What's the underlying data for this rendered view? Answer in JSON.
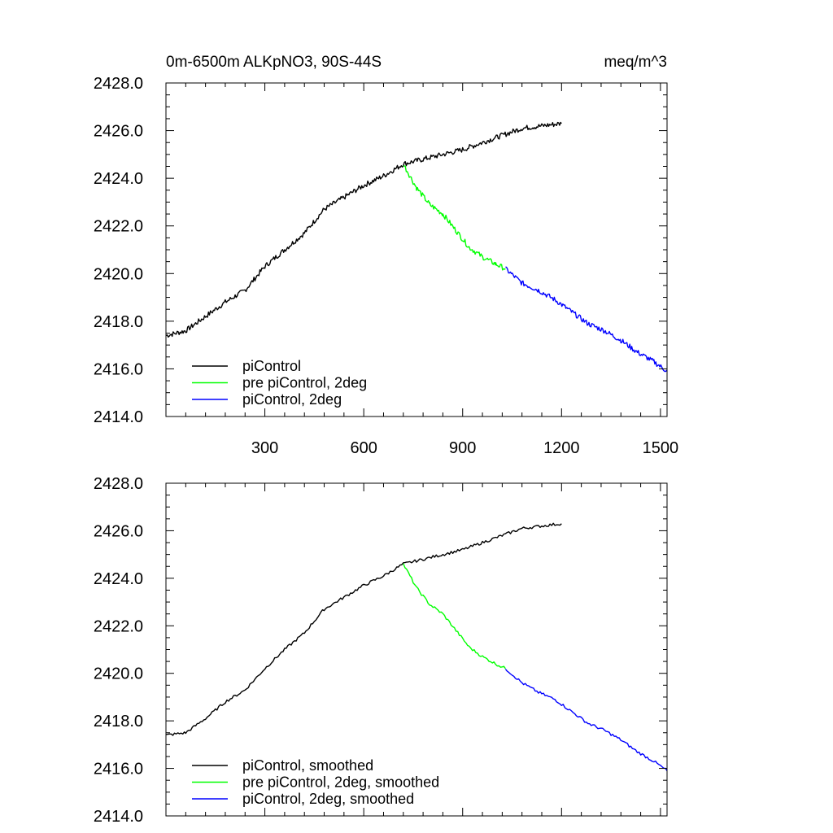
{
  "chart_data": [
    {
      "type": "line",
      "title": "0m-6500m ALKpNO3, 90S-44S",
      "units": "meq/m^3",
      "xlabel": "",
      "ylabel": "",
      "xlim": [
        0,
        1520
      ],
      "ylim": [
        2414.0,
        2428.0
      ],
      "y_ticks": [
        "2414.0",
        "2416.0",
        "2418.0",
        "2420.0",
        "2422.0",
        "2424.0",
        "2426.0",
        "2428.0"
      ],
      "x_ticks": [
        "300",
        "600",
        "900",
        "1200",
        "1500"
      ],
      "grid": false,
      "legend_position": "bottom-left",
      "series": [
        {
          "name": "piControl",
          "color": "#000000",
          "x": [
            1,
            60,
            120,
            180,
            240,
            300,
            360,
            420,
            480,
            540,
            600,
            660,
            720,
            780,
            840,
            900,
            960,
            1020,
            1080,
            1140,
            1200
          ],
          "y": [
            2417.4,
            2417.6,
            2418.2,
            2418.8,
            2419.3,
            2420.3,
            2421.0,
            2421.7,
            2422.7,
            2423.2,
            2423.7,
            2424.1,
            2424.6,
            2424.8,
            2425.0,
            2425.2,
            2425.5,
            2425.8,
            2426.1,
            2426.2,
            2426.3
          ]
        },
        {
          "name": "pre piControl, 2deg",
          "color": "#00ff00",
          "x": [
            720,
            760,
            800,
            840,
            880,
            920,
            960,
            1000,
            1030
          ],
          "y": [
            2424.6,
            2423.6,
            2422.9,
            2422.5,
            2421.8,
            2421.1,
            2420.7,
            2420.4,
            2420.2
          ]
        },
        {
          "name": "piControl, 2deg",
          "color": "#0000ff",
          "x": [
            1030,
            1080,
            1130,
            1180,
            1230,
            1280,
            1330,
            1380,
            1430,
            1480,
            1520
          ],
          "y": [
            2420.2,
            2419.6,
            2419.3,
            2418.9,
            2418.4,
            2417.9,
            2417.6,
            2417.2,
            2416.7,
            2416.3,
            2415.9
          ]
        }
      ]
    },
    {
      "type": "line",
      "title": "",
      "xlabel": "",
      "ylabel": "",
      "xlim": [
        0,
        1520
      ],
      "ylim": [
        2414.0,
        2428.0
      ],
      "y_ticks": [
        "2414.0",
        "2416.0",
        "2418.0",
        "2420.0",
        "2422.0",
        "2424.0",
        "2426.0",
        "2428.0"
      ],
      "x_ticks": [],
      "grid": false,
      "legend_position": "bottom-left",
      "series": [
        {
          "name": "piControl, smoothed",
          "color": "#000000",
          "x": [
            1,
            60,
            120,
            180,
            240,
            300,
            360,
            420,
            480,
            540,
            600,
            660,
            720,
            780,
            840,
            900,
            960,
            1020,
            1080,
            1140,
            1200
          ],
          "y": [
            2417.4,
            2417.5,
            2418.1,
            2418.8,
            2419.3,
            2420.2,
            2421.0,
            2421.7,
            2422.7,
            2423.2,
            2423.7,
            2424.1,
            2424.6,
            2424.8,
            2425.0,
            2425.2,
            2425.5,
            2425.8,
            2426.1,
            2426.2,
            2426.3
          ]
        },
        {
          "name": "pre piControl, 2deg, smoothed",
          "color": "#00ff00",
          "x": [
            720,
            760,
            800,
            840,
            880,
            920,
            960,
            1000,
            1030
          ],
          "y": [
            2424.6,
            2423.6,
            2422.9,
            2422.5,
            2421.8,
            2421.1,
            2420.7,
            2420.4,
            2420.2
          ]
        },
        {
          "name": "piControl, 2deg, smoothed",
          "color": "#0000ff",
          "x": [
            1030,
            1080,
            1130,
            1180,
            1230,
            1280,
            1330,
            1380,
            1430,
            1480,
            1520
          ],
          "y": [
            2420.2,
            2419.6,
            2419.2,
            2418.9,
            2418.4,
            2417.9,
            2417.6,
            2417.2,
            2416.7,
            2416.3,
            2415.9
          ]
        }
      ]
    }
  ]
}
